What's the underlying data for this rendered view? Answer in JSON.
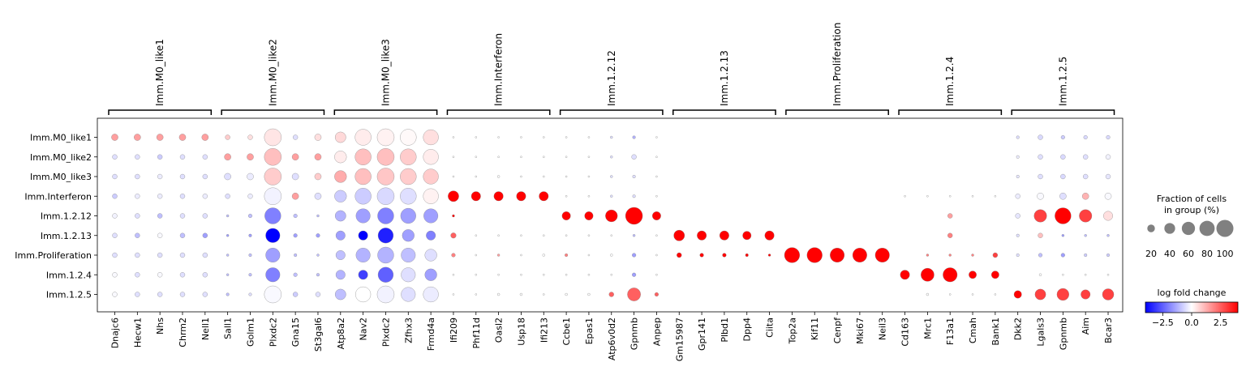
{
  "chart_data": {
    "type": "dotplot",
    "groups": [
      {
        "name": "Imm.M0_like1",
        "genes": [
          "Dnajc6",
          "Hecw1",
          "Nhs",
          "Chrm2",
          "Nell1"
        ]
      },
      {
        "name": "Imm.M0_like2",
        "genes": [
          "Sall1",
          "Golm1",
          "Plxdc2",
          "Gna15",
          "St3gal6"
        ]
      },
      {
        "name": "Imm.M0_like3",
        "genes": [
          "Atp8a2",
          "Nav2",
          "Plxdc2",
          "Zfhx3",
          "Frmd4a"
        ]
      },
      {
        "name": "Imm.Interferon",
        "genes": [
          "Ifi209",
          "Phf11d",
          "Oasl2",
          "Usp18",
          "Ifi213"
        ]
      },
      {
        "name": "Imm.1.2.12",
        "genes": [
          "Ccbe1",
          "Epas1",
          "Atp6v0d2",
          "Gpnmb",
          "Anpep"
        ]
      },
      {
        "name": "Imm.1.2.13",
        "genes": [
          "Gm15987",
          "Gpr141",
          "Plbd1",
          "Dpp4",
          "Ciita"
        ]
      },
      {
        "name": "Imm.Proliferation",
        "genes": [
          "Top2a",
          "Kif11",
          "Cenpf",
          "Mki67",
          "Neil3"
        ]
      },
      {
        "name": "Imm.1.2.4",
        "genes": [
          "Cd163",
          "Mrc1",
          "F13a1",
          "Cmah",
          "Bank1"
        ]
      },
      {
        "name": "Imm.1.2.5",
        "genes": [
          "Dkk2",
          "Lgals3",
          "Gpnmb",
          "Aim",
          "Bcar3"
        ]
      }
    ],
    "rows": [
      "Imm.M0_like1",
      "Imm.M0_like2",
      "Imm.M0_like3",
      "Imm.Interferon",
      "Imm.1.2.12",
      "Imm.1.2.13",
      "Imm.Proliferation",
      "Imm.1.2.4",
      "Imm.1.2.5"
    ],
    "fraction_pct": [
      [
        15,
        15,
        15,
        15,
        15,
        8,
        8,
        100,
        8,
        15,
        40,
        90,
        100,
        90,
        80,
        1,
        1,
        1,
        1,
        1,
        1,
        1,
        2,
        3,
        1,
        0,
        0,
        0,
        0,
        0,
        0,
        0,
        0,
        0,
        0,
        0,
        0,
        0,
        0,
        0,
        3,
        8,
        5,
        5,
        5
      ],
      [
        8,
        8,
        8,
        8,
        8,
        15,
        15,
        100,
        15,
        15,
        50,
        90,
        100,
        90,
        80,
        1,
        1,
        1,
        1,
        1,
        1,
        1,
        2,
        8,
        1,
        0,
        0,
        0,
        0,
        0,
        0,
        0,
        0,
        0,
        0,
        0,
        0,
        0,
        0,
        0,
        3,
        8,
        8,
        8,
        8
      ],
      [
        8,
        8,
        8,
        8,
        8,
        15,
        15,
        100,
        15,
        15,
        50,
        90,
        100,
        90,
        80,
        1,
        1,
        2,
        1,
        1,
        1,
        1,
        2,
        3,
        1,
        0,
        0,
        0,
        0,
        0,
        0,
        0,
        0,
        0,
        0,
        0,
        0,
        0,
        0,
        0,
        3,
        8,
        8,
        8,
        8
      ],
      [
        8,
        8,
        8,
        8,
        8,
        8,
        8,
        100,
        15,
        15,
        50,
        90,
        100,
        90,
        80,
        40,
        30,
        30,
        30,
        30,
        1,
        1,
        2,
        3,
        1,
        0,
        0,
        0,
        0,
        0,
        0,
        0,
        0,
        0,
        0,
        1,
        1,
        1,
        1,
        1,
        8,
        15,
        15,
        15,
        15
      ],
      [
        8,
        8,
        8,
        8,
        8,
        2,
        5,
        90,
        5,
        2,
        40,
        70,
        90,
        80,
        70,
        2,
        0,
        0,
        0,
        0,
        25,
        25,
        50,
        100,
        25,
        0,
        0,
        0,
        0,
        0,
        0,
        0,
        0,
        0,
        0,
        0,
        0,
        8,
        0,
        0,
        8,
        55,
        90,
        55,
        30
      ],
      [
        8,
        8,
        8,
        8,
        8,
        2,
        3,
        70,
        5,
        5,
        30,
        30,
        80,
        50,
        30,
        10,
        1,
        1,
        1,
        1,
        1,
        1,
        1,
        2,
        1,
        40,
        30,
        30,
        25,
        30,
        0,
        0,
        0,
        0,
        0,
        0,
        0,
        8,
        0,
        0,
        3,
        8,
        2,
        2,
        2
      ],
      [
        8,
        8,
        8,
        8,
        8,
        2,
        3,
        70,
        3,
        2,
        30,
        70,
        90,
        70,
        50,
        5,
        1,
        2,
        1,
        2,
        3,
        1,
        2,
        5,
        1,
        8,
        5,
        5,
        3,
        2,
        80,
        80,
        70,
        70,
        70,
        0,
        2,
        2,
        2,
        8,
        3,
        5,
        5,
        3,
        3
      ],
      [
        8,
        8,
        8,
        8,
        8,
        2,
        3,
        70,
        5,
        3,
        30,
        30,
        80,
        70,
        50,
        1,
        1,
        1,
        1,
        1,
        1,
        1,
        1,
        5,
        1,
        0,
        0,
        0,
        0,
        0,
        0,
        0,
        0,
        0,
        0,
        30,
        60,
        70,
        20,
        20,
        0,
        2,
        1,
        1,
        1
      ],
      [
        8,
        8,
        8,
        8,
        8,
        3,
        3,
        100,
        8,
        8,
        40,
        80,
        100,
        70,
        80,
        1,
        1,
        2,
        2,
        1,
        2,
        2,
        8,
        60,
        5,
        0,
        0,
        0,
        0,
        0,
        0,
        0,
        0,
        0,
        0,
        0,
        2,
        1,
        1,
        1,
        20,
        40,
        50,
        30,
        45
      ]
    ],
    "lfc": [
      [
        1.5,
        1.5,
        1.5,
        1.5,
        1.5,
        0.8,
        0.5,
        0.4,
        -0.5,
        0.5,
        0.6,
        0.3,
        0.2,
        0.1,
        0.5,
        0,
        0,
        0,
        0,
        0,
        0,
        0,
        -0.5,
        -1.2,
        0,
        0,
        0,
        0,
        0,
        0,
        0,
        0,
        0,
        0,
        0,
        0,
        0,
        0,
        0,
        0,
        -0.5,
        -0.6,
        -0.8,
        -0.6,
        -0.6
      ],
      [
        -0.5,
        -0.5,
        -0.8,
        -0.5,
        -0.5,
        1.5,
        1.5,
        1.0,
        1.5,
        1.5,
        0.3,
        1.0,
        1.0,
        0.8,
        0.3,
        0,
        0,
        0,
        0,
        0,
        0,
        0,
        -0.5,
        -0.5,
        0,
        0,
        0,
        0,
        0,
        0,
        0,
        0,
        0,
        0,
        0,
        0,
        0,
        0,
        0,
        0,
        -0.3,
        -0.5,
        -0.6,
        -0.5,
        -0.2
      ],
      [
        -0.5,
        -0.5,
        -0.3,
        -0.5,
        -0.5,
        -0.5,
        -0.3,
        0.8,
        -0.5,
        0.8,
        1.3,
        1.0,
        0.9,
        0.8,
        0.8,
        0,
        0,
        0,
        0,
        0,
        0,
        0,
        -0.5,
        -0.5,
        0,
        0,
        0,
        0,
        0,
        0,
        0,
        0,
        0,
        0,
        0,
        0,
        0,
        0,
        0,
        0,
        -0.4,
        -0.5,
        -0.6,
        -0.5,
        -0.4
      ],
      [
        -0.8,
        -0.3,
        -0.3,
        -0.5,
        -0.3,
        -0.5,
        -0.3,
        -0.2,
        1.5,
        -0.5,
        -0.8,
        -0.8,
        -0.6,
        -0.5,
        0.2,
        4,
        4,
        4,
        4,
        4,
        0,
        0,
        -0.5,
        -0.5,
        0,
        0,
        0,
        0,
        0,
        0,
        0,
        0,
        0,
        0,
        0,
        0,
        0,
        0,
        0,
        0,
        -0.3,
        -0.1,
        -0.5,
        1.2,
        -0.1
      ],
      [
        -0.2,
        -0.5,
        -1.0,
        -0.5,
        -0.5,
        -1.0,
        -1.0,
        -2.0,
        -1.0,
        -1.0,
        -1.2,
        -1.5,
        -2.0,
        -1.5,
        -1.5,
        4,
        0,
        0,
        0,
        0,
        4,
        4,
        4,
        4,
        4,
        0,
        0,
        0,
        0,
        0,
        0,
        0,
        0,
        0,
        0,
        0,
        0,
        1.5,
        0,
        0,
        -0.4,
        3,
        4,
        3,
        0.5
      ],
      [
        -0.5,
        -1.0,
        -0.1,
        -1.0,
        -1.5,
        -1.5,
        -1.5,
        -4.0,
        -1.5,
        -1.5,
        -1.5,
        -4.0,
        -3.5,
        -1.5,
        -2.0,
        2.5,
        0,
        0,
        0,
        0,
        0,
        0,
        0,
        -1.0,
        0,
        4,
        4,
        4,
        4,
        4,
        0,
        0,
        0,
        0,
        0,
        0,
        0,
        2,
        0,
        0,
        -0.5,
        1.0,
        -1.5,
        -1.0,
        -1.0
      ],
      [
        -0.5,
        -0.5,
        -0.5,
        -0.5,
        -0.5,
        -1.0,
        -1.0,
        -1.5,
        -1.0,
        -1.0,
        -1.0,
        -1.2,
        -1.2,
        -1.0,
        -0.5,
        2.0,
        0,
        1.5,
        0,
        0,
        2.0,
        0,
        0,
        -1.5,
        0,
        4,
        4,
        4,
        4,
        4,
        4,
        4,
        4,
        4,
        4,
        0,
        2,
        2,
        2,
        3,
        -0.5,
        -1.0,
        -1.5,
        -0.8,
        -0.8
      ],
      [
        -0.1,
        -0.5,
        -0.1,
        -0.5,
        -0.5,
        -1.0,
        -1.0,
        -2.0,
        -1.0,
        -1.0,
        -1.2,
        -3.0,
        -2.5,
        -0.5,
        -1.5,
        0,
        0,
        0,
        0,
        0,
        0,
        0,
        0,
        -1.5,
        0,
        0,
        0,
        0,
        0,
        0,
        0,
        0,
        0,
        0,
        0,
        4,
        4,
        4,
        4,
        4,
        0,
        0,
        0,
        0,
        0
      ],
      [
        -0.1,
        -0.5,
        -0.5,
        -0.5,
        -0.5,
        -1.0,
        -0.5,
        -0.1,
        -0.8,
        -0.5,
        -1.0,
        0.0,
        -0.2,
        -0.5,
        -0.3,
        0,
        0,
        0,
        0,
        0,
        0,
        0,
        2.5,
        2.5,
        2.5,
        0,
        0,
        0,
        0,
        0,
        0,
        0,
        0,
        0,
        0,
        0,
        0,
        0,
        0,
        0,
        4,
        3,
        3,
        3,
        3
      ]
    ],
    "size_legend": {
      "title_line1": "Fraction of cells",
      "title_line2": "in group (%)",
      "values": [
        20,
        40,
        60,
        80,
        100
      ],
      "labels": [
        "20",
        "40",
        "60",
        "80",
        "100"
      ]
    },
    "color_legend": {
      "title": "log fold change",
      "range": [
        -4,
        4
      ],
      "ticks": [
        -2.5,
        0.0,
        2.5
      ],
      "tick_labels": [
        "−2.5",
        "0.0",
        "2.5"
      ],
      "colormap": "bwr",
      "colors": {
        "low": "#0000ff",
        "mid": "#ffffff",
        "high": "#ff0000"
      }
    },
    "dot_edge_color": "#7f7f7f",
    "size_legend_dot_color": "#808080"
  }
}
